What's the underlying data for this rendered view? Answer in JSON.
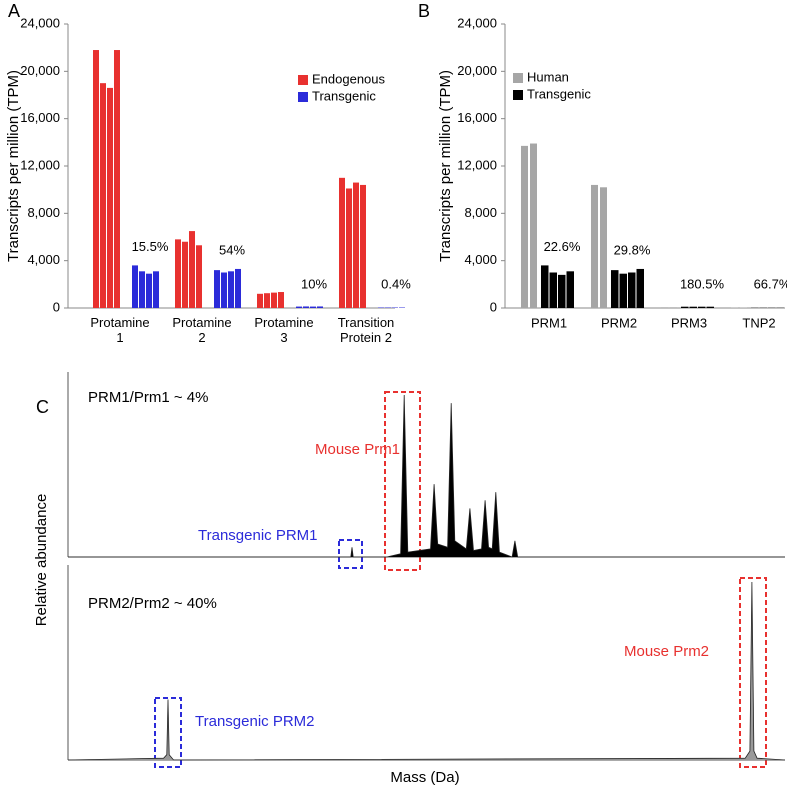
{
  "chart_data": [
    {
      "type": "bar",
      "panel": "A",
      "y_label": "Transcripts per million (TPM)",
      "categories": [
        "Protamine\n1",
        "Protamine\n2",
        "Protamine\n3",
        "Transition\nProtein 2"
      ],
      "series": [
        {
          "name": "Endogenous",
          "color": "#e8312f",
          "values": [
            [
              21800,
              19000,
              18600,
              21800
            ],
            [
              5800,
              5600,
              6500,
              5300
            ],
            [
              1200,
              1250,
              1300,
              1350
            ],
            [
              11000,
              10100,
              10600,
              10400
            ]
          ]
        },
        {
          "name": "Transgenic",
          "color": "#2b2bd9",
          "values": [
            [
              3600,
              3100,
              2900,
              3100
            ],
            [
              3200,
              3000,
              3100,
              3300
            ],
            [
              120,
              130,
              120,
              130
            ],
            [
              40,
              40,
              40,
              40
            ]
          ]
        }
      ],
      "annotations": [
        "15.5%",
        "54%",
        "10%",
        "0.4%"
      ],
      "ylim": [
        0,
        24000
      ],
      "yticks": [
        0,
        {
          "value": 4000,
          "label": "4,000"
        },
        {
          "value": 8000,
          "label": "8,000"
        },
        {
          "value": 12000,
          "label": "12,000"
        },
        {
          "value": 16000,
          "label": "16,000"
        },
        {
          "value": 20000,
          "label": "20,000"
        },
        {
          "value": 24000,
          "label": "24,000"
        }
      ],
      "legend": "upper right",
      "grid": false
    },
    {
      "type": "bar",
      "panel": "B",
      "y_label": "Transcripts per million (TPM)",
      "categories": [
        "PRM1",
        "PRM2",
        "PRM3",
        "TNP2"
      ],
      "series": [
        {
          "name": "Human",
          "color": "#a6a6a6",
          "values": [
            [
              13700,
              13900
            ],
            [
              10400,
              10200
            ],
            [
              60,
              60
            ],
            [
              30,
              30
            ]
          ]
        },
        {
          "name": "Transgenic",
          "color": "#000000",
          "values": [
            [
              3600,
              3000,
              2800,
              3100
            ],
            [
              3200,
              2900,
              3000,
              3300
            ],
            [
              110,
              110,
              110,
              110
            ],
            [
              20,
              20,
              20,
              20
            ]
          ]
        }
      ],
      "annotations": [
        "22.6%",
        "29.8%",
        "180.5%",
        "66.7%"
      ],
      "ylim": [
        0,
        24000
      ],
      "yticks": [
        0,
        {
          "value": 4000,
          "label": "4,000"
        },
        {
          "value": 8000,
          "label": "8,000"
        },
        {
          "value": 12000,
          "label": "12,000"
        },
        {
          "value": 16000,
          "label": "16,000"
        },
        {
          "value": 20000,
          "label": "20,000"
        },
        {
          "value": 24000,
          "label": "24,000"
        }
      ],
      "legend": "upper right",
      "grid": false
    },
    {
      "type": "area",
      "panel": "C",
      "title": "PRM1/Prm1  ~ 4%",
      "y_label": "Relative abundance",
      "peak_labels": [
        "Mouse Prm1",
        "Transgenic PRM1"
      ],
      "color": "#000000",
      "x": [
        6000,
        6700,
        6710,
        6713,
        6716,
        6800,
        6835,
        6844,
        6853,
        6910,
        6919,
        6928,
        6953,
        6962,
        6971,
        7000,
        7009,
        7018,
        7038,
        7047,
        7056,
        7065,
        7074,
        7083,
        7115,
        7122,
        7129,
        7800
      ],
      "values": [
        0,
        0,
        0,
        6,
        0,
        0,
        2,
        100,
        3,
        5,
        45,
        8,
        6,
        95,
        10,
        5,
        30,
        4,
        5,
        35,
        6,
        5,
        40,
        3,
        0,
        10,
        0,
        0
      ],
      "xlim": [
        6000,
        7800
      ],
      "ylim": [
        0,
        100
      ]
    },
    {
      "type": "area",
      "title": "PRM2/Prm2  ~ 40%",
      "x_label": "Mass (Da)",
      "peak_labels": [
        "Mouse Prm2",
        "Transgenic PRM2"
      ],
      "color": "#999999",
      "x": [
        6000,
        6240,
        6248,
        6251,
        6254,
        6265,
        7700,
        7712,
        7717,
        7722,
        7730,
        7800
      ],
      "values": [
        0,
        1,
        3,
        34,
        3,
        0,
        1,
        5,
        100,
        5,
        1,
        0
      ],
      "xlim": [
        6000,
        7800
      ],
      "ylim": [
        0,
        100
      ]
    }
  ]
}
